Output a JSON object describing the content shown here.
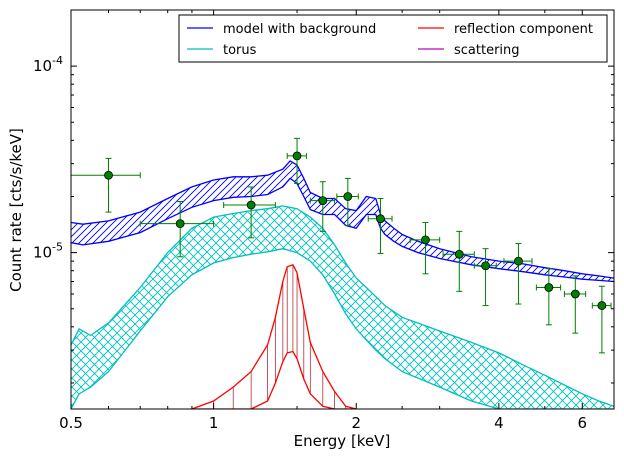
{
  "chart_data": {
    "type": "line",
    "title": "",
    "xlabel": "Energy [keV]",
    "ylabel": "Count rate [cts/s/keV]",
    "x_scale": "log",
    "y_scale": "log",
    "xlim": [
      0.5,
      7.0
    ],
    "ylim": [
      1.45e-06,
      0.0002
    ],
    "x_ticks": [
      {
        "value": 0.5,
        "label": "0.5"
      },
      {
        "value": 1,
        "label": "1"
      },
      {
        "value": 2,
        "label": "2"
      },
      {
        "value": 4,
        "label": "4"
      },
      {
        "value": 6,
        "label": "6"
      }
    ],
    "y_ticks": [
      {
        "value": 1e-05,
        "base": "10",
        "exp": "-5"
      },
      {
        "value": 0.0001,
        "base": "10",
        "exp": "-4"
      }
    ],
    "grid": false,
    "legend": {
      "placement": "top-right",
      "columns": 2,
      "entries": [
        {
          "name": "model with background",
          "color": "#0000ff"
        },
        {
          "name": "reflection component",
          "color": "#ff0000"
        },
        {
          "name": "torus",
          "color": "#00bfbf"
        },
        {
          "name": "scattering",
          "color": "#bf00bf"
        }
      ]
    },
    "colors": {
      "model": "#0000ff",
      "torus": "#00bfbf",
      "reflection": "#ff0000",
      "scattering": "#bf00bf",
      "data": "#008000"
    },
    "data_points": [
      {
        "x": 0.6,
        "y": 2.6e-05,
        "xerr": [
          0.5,
          0.7
        ],
        "yerr": [
          1.65e-05,
          3.2e-05
        ]
      },
      {
        "x": 0.85,
        "y": 1.43e-05,
        "xerr": [
          0.7,
          1.0
        ],
        "yerr": [
          9.5e-06,
          1.88e-05
        ]
      },
      {
        "x": 1.2,
        "y": 1.8e-05,
        "xerr": [
          1.05,
          1.35
        ],
        "yerr": [
          1.2e-05,
          2.25e-05
        ]
      },
      {
        "x": 1.5,
        "y": 3.3e-05,
        "xerr": [
          1.43,
          1.57
        ],
        "yerr": [
          2.35e-05,
          4.1e-05
        ]
      },
      {
        "x": 1.7,
        "y": 1.9e-05,
        "xerr": [
          1.6,
          1.8
        ],
        "yerr": [
          1.3e-05,
          2.4e-05
        ]
      },
      {
        "x": 1.92,
        "y": 2e-05,
        "xerr": [
          1.82,
          2.02
        ],
        "yerr": [
          1.4e-05,
          2.5e-05
        ]
      },
      {
        "x": 2.25,
        "y": 1.52e-05,
        "xerr": [
          2.12,
          2.38
        ],
        "yerr": [
          9.9e-06,
          1.95e-05
        ]
      },
      {
        "x": 2.8,
        "y": 1.17e-05,
        "xerr": [
          2.6,
          3.0
        ],
        "yerr": [
          7.7e-06,
          1.45e-05
        ]
      },
      {
        "x": 3.3,
        "y": 9.8e-06,
        "xerr": [
          3.05,
          3.55
        ],
        "yerr": [
          6.2e-06,
          1.3e-05
        ]
      },
      {
        "x": 3.75,
        "y": 8.5e-06,
        "xerr": [
          3.55,
          3.95
        ],
        "yerr": [
          5.2e-06,
          1.05e-05
        ]
      },
      {
        "x": 4.4,
        "y": 9e-06,
        "xerr": [
          4.1,
          4.7
        ],
        "yerr": [
          5.3e-06,
          1.12e-05
        ]
      },
      {
        "x": 5.1,
        "y": 6.5e-06,
        "xerr": [
          4.8,
          5.4
        ],
        "yerr": [
          4.1e-06,
          8.2e-06
        ]
      },
      {
        "x": 5.8,
        "y": 6e-06,
        "xerr": [
          5.5,
          6.1
        ],
        "yerr": [
          3.7e-06,
          7.5e-06
        ]
      },
      {
        "x": 6.6,
        "y": 5.2e-06,
        "xerr": [
          6.3,
          6.9
        ],
        "yerr": [
          2.9e-06,
          6.6e-06
        ]
      }
    ],
    "model_band": {
      "x": [
        0.5,
        0.53,
        0.6,
        0.7,
        0.8,
        0.9,
        1.0,
        1.1,
        1.2,
        1.3,
        1.4,
        1.45,
        1.5,
        1.55,
        1.6,
        1.7,
        1.8,
        1.9,
        2.0,
        2.1,
        2.2,
        2.25,
        2.3,
        2.4,
        2.5,
        2.7,
        3.0,
        3.5,
        4.0,
        4.5,
        5.0,
        5.5,
        6.0,
        6.5,
        7.0
      ],
      "upper": [
        1.45e-05,
        1.42e-05,
        1.48e-05,
        1.65e-05,
        1.95e-05,
        2.25e-05,
        2.45e-05,
        2.55e-05,
        2.55e-05,
        2.6e-05,
        2.8e-05,
        3.1e-05,
        2.95e-05,
        2.5e-05,
        2.1e-05,
        1.95e-05,
        1.95e-05,
        1.72e-05,
        1.68e-05,
        2e-05,
        1.95e-05,
        1.6e-05,
        1.48e-05,
        1.35e-05,
        1.25e-05,
        1.15e-05,
        1.05e-05,
        9.5e-06,
        9e-06,
        8.7e-06,
        8.3e-06,
        8e-06,
        7.7e-06,
        7.5e-06,
        7.3e-06
      ],
      "lower": [
        1.13e-05,
        1.1e-05,
        1.15e-05,
        1.28e-05,
        1.52e-05,
        1.75e-05,
        1.9e-05,
        1.98e-05,
        2e-05,
        2.05e-05,
        2.25e-05,
        2.5e-05,
        2.35e-05,
        2e-05,
        1.7e-05,
        1.6e-05,
        1.6e-05,
        1.4e-05,
        1.35e-05,
        1.6e-05,
        1.6e-05,
        1.35e-05,
        1.25e-05,
        1.15e-05,
        1.08e-05,
        1e-05,
        9.3e-06,
        8.6e-06,
        8.2e-06,
        7.9e-06,
        7.6e-06,
        7.4e-06,
        7.2e-06,
        7.1e-06,
        7e-06
      ]
    },
    "torus_band": {
      "x": [
        0.5,
        0.52,
        0.55,
        0.6,
        0.7,
        0.8,
        0.9,
        1.0,
        1.1,
        1.2,
        1.3,
        1.4,
        1.5,
        1.6,
        1.7,
        1.8,
        1.9,
        2.0,
        2.1,
        2.2,
        2.3,
        2.5,
        3.0,
        3.5,
        4.0,
        4.5,
        5.0,
        5.5,
        6.0,
        6.5,
        7.0
      ],
      "upper": [
        3.2e-06,
        3.9e-06,
        3.6e-06,
        4.2e-06,
        6.5e-06,
        1e-05,
        1.35e-05,
        1.55e-05,
        1.62e-05,
        1.68e-05,
        1.72e-05,
        1.78e-05,
        1.72e-05,
        1.55e-05,
        1.35e-05,
        1.1e-05,
        8.8e-06,
        7.3e-06,
        6.5e-06,
        5.8e-06,
        5.2e-06,
        4.5e-06,
        3.8e-06,
        3.3e-06,
        2.9e-06,
        2.5e-06,
        2.2e-06,
        1.95e-06,
        1.75e-06,
        1.6e-06,
        1.5e-06
      ],
      "lower": [
        1.45e-06,
        1.75e-06,
        1.9e-06,
        2.3e-06,
        3.8e-06,
        5.8e-06,
        7.6e-06,
        8.8e-06,
        9.4e-06,
        9.8e-06,
        1.01e-05,
        1.05e-05,
        1e-05,
        9e-06,
        7.6e-06,
        6e-06,
        4.7e-06,
        3.9e-06,
        3.4e-06,
        3e-06,
        2.7e-06,
        2.3e-06,
        1.9e-06,
        1.6e-06,
        1.45e-06,
        1.45e-06,
        1.45e-06,
        1.45e-06,
        1.45e-06,
        1.45e-06,
        1.45e-06
      ]
    },
    "reflection_band": {
      "x": [
        0.9,
        1.0,
        1.1,
        1.2,
        1.3,
        1.35,
        1.4,
        1.43,
        1.47,
        1.5,
        1.55,
        1.6,
        1.7,
        1.8,
        1.9,
        2.0
      ],
      "upper": [
        1.45e-06,
        1.6e-06,
        1.9e-06,
        2.3e-06,
        3.2e-06,
        4.5e-06,
        7e-06,
        8.4e-06,
        8.6e-06,
        7.8e-06,
        5e-06,
        3.3e-06,
        2.3e-06,
        1.8e-06,
        1.5e-06,
        1.45e-06
      ],
      "lower": [
        1.45e-06,
        1.45e-06,
        1.45e-06,
        1.45e-06,
        1.6e-06,
        2e-06,
        2.6e-06,
        2.9e-06,
        2.95e-06,
        2.7e-06,
        2.1e-06,
        1.75e-06,
        1.5e-06,
        1.45e-06,
        1.45e-06,
        1.45e-06
      ]
    }
  }
}
